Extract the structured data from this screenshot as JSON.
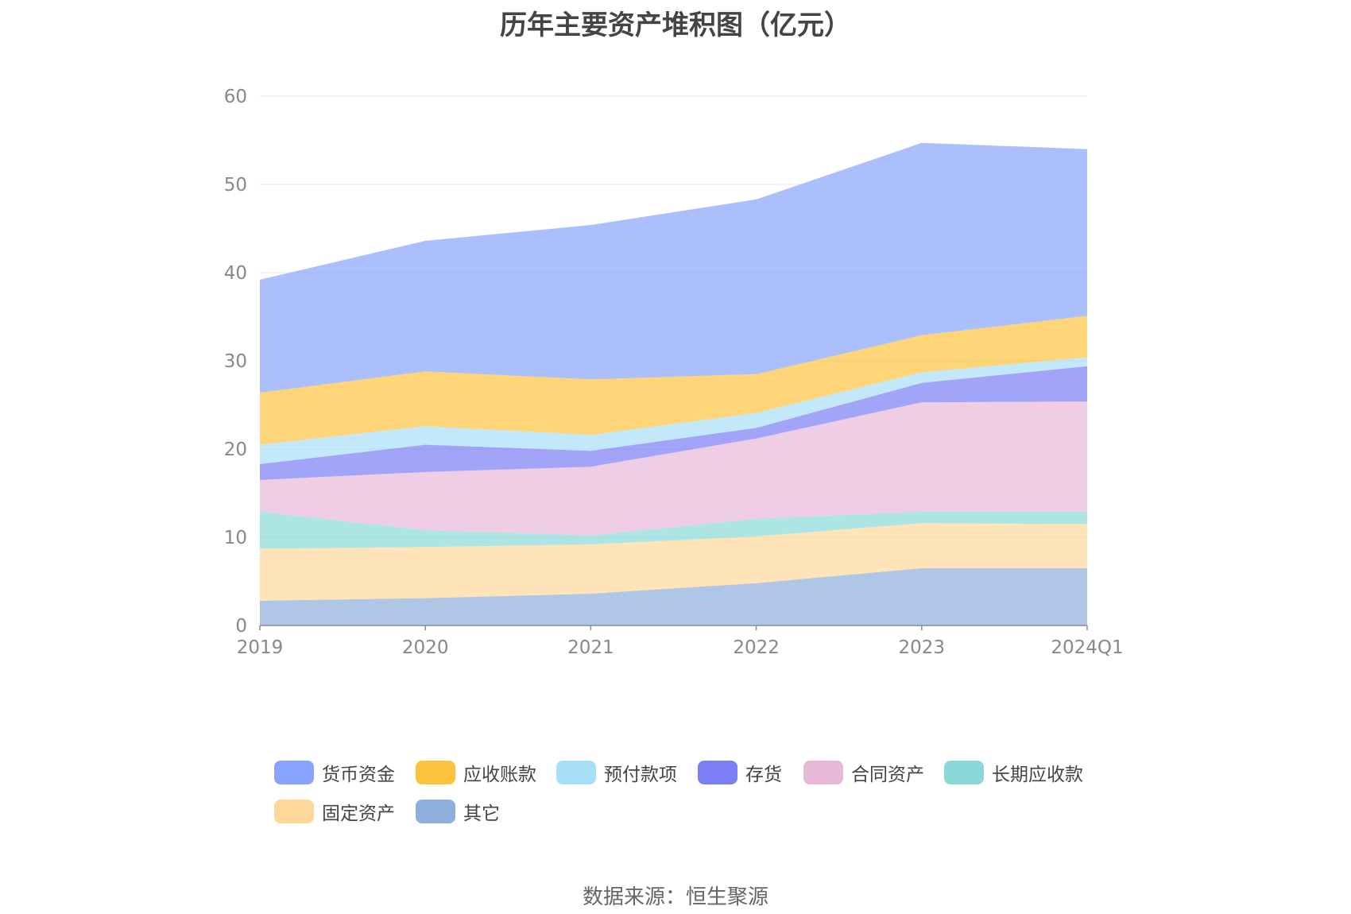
{
  "title": "历年主要资产堆积图（亿元）",
  "source": "数据来源：恒生聚源",
  "chart_data": {
    "type": "area",
    "stacked": true,
    "title": "历年主要资产堆积图（亿元）",
    "categories": [
      "2019",
      "2020",
      "2021",
      "2022",
      "2023",
      "2024Q1"
    ],
    "ylim": [
      0,
      60
    ],
    "yticks": [
      0,
      10,
      20,
      30,
      40,
      50,
      60
    ],
    "grid": true,
    "legend_position": "bottom",
    "series": [
      {
        "name": "其它",
        "color": "#8eaedc",
        "values": [
          2.8,
          3.1,
          3.6,
          4.8,
          6.5,
          6.5
        ]
      },
      {
        "name": "固定资产",
        "color": "#fdd89a",
        "values": [
          5.9,
          5.8,
          5.6,
          5.3,
          5.1,
          5.0
        ]
      },
      {
        "name": "长期应收款",
        "color": "#8ad8d8",
        "values": [
          4.2,
          1.9,
          1.0,
          2.0,
          1.3,
          1.4
        ]
      },
      {
        "name": "合同资产",
        "color": "#e8b8d8",
        "values": [
          3.6,
          6.6,
          7.8,
          9.1,
          12.4,
          12.5
        ]
      },
      {
        "name": "存货",
        "color": "#7b7ef5",
        "values": [
          1.8,
          3.1,
          1.8,
          1.2,
          2.2,
          4.0
        ]
      },
      {
        "name": "预付款项",
        "color": "#a8def8",
        "values": [
          2.2,
          2.1,
          1.8,
          1.7,
          1.2,
          1.0
        ]
      },
      {
        "name": "应收账款",
        "color": "#fdc33e",
        "values": [
          5.9,
          6.2,
          6.3,
          4.4,
          4.2,
          4.7
        ]
      },
      {
        "name": "货币资金",
        "color": "#88a4fc",
        "values": [
          12.8,
          14.8,
          17.5,
          19.8,
          21.8,
          18.9
        ]
      }
    ],
    "legend_order": [
      "货币资金",
      "应收账款",
      "预付款项",
      "存货",
      "合同资产",
      "长期应收款",
      "固定资产",
      "其它"
    ]
  }
}
